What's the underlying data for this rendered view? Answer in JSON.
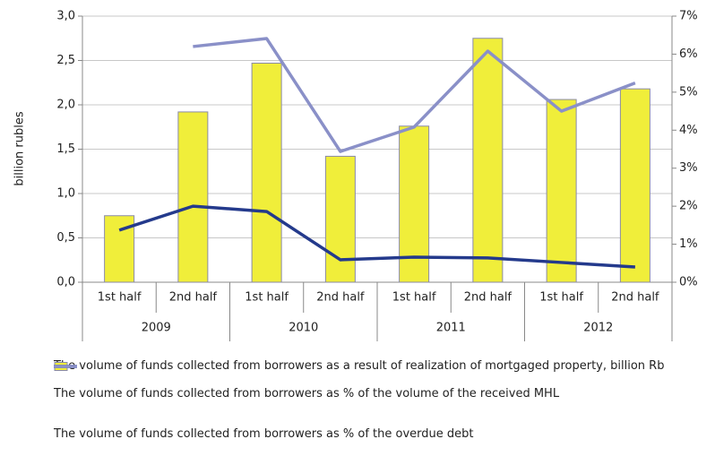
{
  "chart_data": {
    "type": "bar",
    "y_label": "billion rubles",
    "categories": [
      "1st half",
      "2nd half",
      "1st half",
      "2nd half",
      "1st half",
      "2nd half",
      "1st half",
      "2nd half"
    ],
    "category_groups": [
      "2009",
      "2010",
      "2011",
      "2012"
    ],
    "series": [
      {
        "name": "The volume of funds collected from borrowers as a result of realization of mortgaged property, billion Rb",
        "type": "bar",
        "color": "#f0ee3a",
        "values": [
          0.75,
          1.92,
          2.47,
          1.42,
          1.76,
          2.75,
          2.06,
          2.18
        ]
      },
      {
        "name": "The volume of funds collected from borrowers as % of the volume of the received MHL",
        "type": "line",
        "axis": "y2",
        "color": "#243a8c",
        "values": [
          1.37,
          2.0,
          1.86,
          0.59,
          0.66,
          0.64,
          0.52,
          0.4
        ]
      },
      {
        "name": "The volume of funds collected from borrowers as % of the overdue debt",
        "type": "line",
        "axis": "y2",
        "color": "#8a90c8",
        "values": [
          null,
          6.2,
          6.41,
          3.44,
          4.08,
          6.08,
          4.5,
          5.24
        ]
      }
    ],
    "ylim": [
      0,
      3
    ],
    "yticks": [
      {
        "value": 0,
        "label": "0,0"
      },
      {
        "value": 0.5,
        "label": "0,5"
      },
      {
        "value": 1,
        "label": "1,0"
      },
      {
        "value": 1.5,
        "label": "1,5"
      },
      {
        "value": 2,
        "label": "2,0"
      },
      {
        "value": 2.5,
        "label": "2,5"
      },
      {
        "value": 3,
        "label": "3,0"
      }
    ],
    "y2lim": [
      0,
      7
    ],
    "y2ticks": [
      {
        "value": 0,
        "label": "0%"
      },
      {
        "value": 1,
        "label": "1%"
      },
      {
        "value": 2,
        "label": "2%"
      },
      {
        "value": 3,
        "label": "3%"
      },
      {
        "value": 4,
        "label": "4%"
      },
      {
        "value": 5,
        "label": "5%"
      },
      {
        "value": 6,
        "label": "6%"
      },
      {
        "value": 7,
        "label": "7%"
      }
    ],
    "grid": true
  }
}
